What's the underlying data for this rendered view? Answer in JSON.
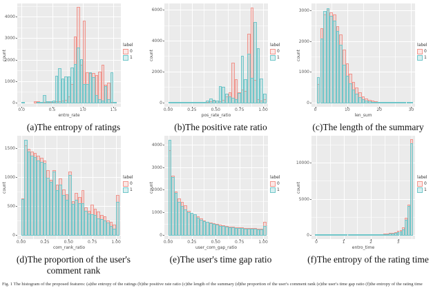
{
  "figure": {
    "caption": "Fig. 1 The histogram of the proposed features: (a)the entropy of the ratings (b)the positive rate ratio (c)the length of the summary (d)the proportion of the user's comment rank (e)the user's time gap ratio (f)the entropy of the rating time",
    "legend": {
      "title": "label",
      "entries": [
        "0",
        "1"
      ]
    },
    "colors": {
      "label0_stroke": "#f0948c",
      "label0_fill": "rgba(240,148,140,0.22)",
      "label1_stroke": "#6fc6c9",
      "label1_fill": "rgba(111,198,201,0.28)",
      "panel_bg": "#ebebeb",
      "grid": "#ffffff",
      "axis_text": "#4d4d4d"
    }
  },
  "chart_data": [
    {
      "id": "a",
      "type": "histogram",
      "caption": "(a)The entropy of ratings",
      "xlabel": "entro_rate",
      "ylabel": "count",
      "xlim": [
        -0.07,
        1.62
      ],
      "ylim": [
        0,
        4650
      ],
      "x_ticks": [
        0,
        0.5,
        1,
        1.5
      ],
      "x_tick_labels": [
        "0.0",
        "0.5",
        "1.0",
        "1.5"
      ],
      "y_ticks": [
        0,
        1000,
        2000,
        3000,
        4000
      ],
      "y_tick_labels": [
        "0",
        "1000",
        "2000",
        "3000",
        "4000"
      ],
      "bin_start": 0.0,
      "bin_width": 0.05,
      "series": [
        {
          "name": "0",
          "values": [
            70,
            0,
            0,
            0,
            100,
            90,
            30,
            30,
            40,
            60,
            70,
            80,
            100,
            130,
            150,
            300,
            900,
            3100,
            4500,
            1800,
            3850,
            1450,
            1400,
            1400,
            1320,
            1460,
            1780,
            860,
            950,
            40,
            60
          ]
        },
        {
          "name": "1",
          "values": [
            60,
            0,
            0,
            0,
            0,
            60,
            50,
            370,
            80,
            90,
            110,
            1280,
            1630,
            1140,
            1250,
            1230,
            1670,
            1820,
            2600,
            2050,
            900,
            880,
            1430,
            1200,
            380,
            180,
            120,
            780,
            180,
            1430,
            40
          ]
        }
      ]
    },
    {
      "id": "b",
      "type": "histogram",
      "caption": "(b)The positive rate ratio",
      "xlabel": "pos_rate_ratio",
      "ylabel": "count",
      "xlim": [
        -0.04,
        1.05
      ],
      "ylim": [
        0,
        6450
      ],
      "x_ticks": [
        0,
        0.25,
        0.5,
        0.75,
        1
      ],
      "x_tick_labels": [
        "0.00",
        "0.25",
        "0.50",
        "0.75",
        "1.00"
      ],
      "y_ticks": [
        0,
        2000,
        4000,
        6000
      ],
      "y_tick_labels": [
        "0",
        "2000",
        "4000",
        "6000"
      ],
      "bin_start": 0.0,
      "bin_width": 0.0333,
      "series": [
        {
          "name": "0",
          "values": [
            30,
            20,
            20,
            20,
            20,
            25,
            25,
            30,
            40,
            90,
            50,
            60,
            80,
            120,
            150,
            180,
            120,
            200,
            450,
            700,
            2600,
            1550,
            700,
            900,
            800,
            4500,
            6200,
            1500,
            250,
            150,
            250
          ]
        },
        {
          "name": "1",
          "values": [
            30,
            20,
            20,
            30,
            40,
            60,
            30,
            80,
            40,
            40,
            50,
            70,
            150,
            280,
            200,
            150,
            1100,
            1050,
            600,
            450,
            350,
            250,
            680,
            3050,
            1550,
            3200,
            1650,
            5250,
            3550,
            1600,
            600
          ]
        }
      ]
    },
    {
      "id": "c",
      "type": "histogram",
      "caption": "(c)The length of the summary",
      "xlabel": "len_sum",
      "ylabel": "count",
      "xlim": [
        -1.2,
        31.2
      ],
      "ylim": [
        0,
        3250
      ],
      "x_ticks": [
        0,
        10,
        20,
        30
      ],
      "x_tick_labels": [
        "0",
        "10",
        "20",
        "30"
      ],
      "y_ticks": [
        0,
        1000,
        2000,
        3000
      ],
      "y_tick_labels": [
        "0",
        "1000",
        "2000",
        "3000"
      ],
      "bin_start": 0.5,
      "bin_width": 1,
      "series": [
        {
          "name": "0",
          "values": [
            620,
            2450,
            2900,
            3050,
            2950,
            2900,
            2500,
            2250,
            1750,
            1300,
            950,
            700,
            500,
            350,
            230,
            150,
            110,
            80,
            60,
            50,
            40,
            35,
            30,
            25,
            22,
            20,
            18,
            15,
            12,
            10
          ]
        },
        {
          "name": "1",
          "values": [
            850,
            2100,
            3000,
            3100,
            2850,
            2700,
            2350,
            1900,
            1250,
            900,
            650,
            450,
            300,
            200,
            130,
            95,
            70,
            50,
            40,
            35,
            30,
            25,
            20,
            18,
            15,
            12,
            10,
            9,
            8,
            8
          ]
        }
      ]
    },
    {
      "id": "d",
      "type": "histogram",
      "caption": "(d)The proportion of the user's comment rank",
      "xlabel": "com_rank_ratio",
      "ylabel": "count",
      "xlim": [
        -0.04,
        1.05
      ],
      "ylim": [
        0,
        1720
      ],
      "x_ticks": [
        0,
        0.25,
        0.5,
        0.75,
        1
      ],
      "x_tick_labels": [
        "0.00",
        "0.25",
        "0.50",
        "0.75",
        "1.00"
      ],
      "y_ticks": [
        0,
        500,
        1000,
        1500
      ],
      "y_tick_labels": [
        "0",
        "500",
        "1000",
        "1500"
      ],
      "bin_start": 0.0,
      "bin_width": 0.0333,
      "series": [
        {
          "name": "0",
          "values": [
            640,
            1560,
            1500,
            1450,
            1420,
            1380,
            1340,
            1290,
            1130,
            960,
            1130,
            880,
            990,
            790,
            710,
            1100,
            590,
            740,
            660,
            780,
            490,
            430,
            540,
            460,
            410,
            360,
            330,
            260,
            240,
            190,
            700
          ]
        },
        {
          "name": "1",
          "values": [
            630,
            1650,
            1450,
            1380,
            1350,
            1300,
            1270,
            1250,
            1000,
            930,
            1110,
            780,
            880,
            700,
            620,
            1050,
            550,
            620,
            560,
            560,
            430,
            380,
            370,
            360,
            300,
            280,
            260,
            220,
            160,
            120,
            580
          ]
        }
      ]
    },
    {
      "id": "e",
      "type": "histogram",
      "caption": "(e)The user's time gap ratio",
      "xlabel": "user_com_gap_ratio",
      "ylabel": "count",
      "xlim": [
        -0.04,
        1.05
      ],
      "ylim": [
        0,
        4420
      ],
      "x_ticks": [
        0,
        0.25,
        0.5,
        0.75,
        1
      ],
      "x_tick_labels": [
        "0.00",
        "0.25",
        "0.50",
        "0.75",
        "1.00"
      ],
      "y_ticks": [
        0,
        1000,
        2000,
        3000,
        4000
      ],
      "y_tick_labels": [
        "0",
        "1000",
        "2000",
        "3000",
        "4000"
      ],
      "bin_start": 0.0,
      "bin_width": 0.0333,
      "series": [
        {
          "name": "0",
          "values": [
            3800,
            2650,
            1950,
            1650,
            1500,
            1350,
            1100,
            1000,
            950,
            850,
            750,
            680,
            620,
            580,
            550,
            520,
            480,
            450,
            430,
            410,
            390,
            370,
            360,
            350,
            340,
            330,
            330,
            320,
            310,
            300,
            620
          ]
        },
        {
          "name": "1",
          "values": [
            4250,
            2600,
            1900,
            1500,
            1300,
            1150,
            1050,
            1000,
            950,
            800,
            700,
            650,
            600,
            550,
            520,
            480,
            440,
            420,
            390,
            370,
            350,
            340,
            330,
            320,
            310,
            300,
            300,
            290,
            280,
            270,
            420
          ]
        }
      ]
    },
    {
      "id": "f",
      "type": "histogram",
      "caption": "(f)The entropy of the rating time",
      "xlabel": "entro_time",
      "ylabel": "count",
      "xlim": [
        -0.18,
        3.62
      ],
      "ylim": [
        0,
        13800
      ],
      "x_ticks": [
        0,
        1,
        2,
        3
      ],
      "x_tick_labels": [
        "0",
        "1",
        "2",
        "3"
      ],
      "y_ticks": [
        0,
        5000,
        10000
      ],
      "y_tick_labels": [
        "0",
        "5000",
        "10000"
      ],
      "bin_start": -0.05,
      "bin_width": 0.1,
      "series": [
        {
          "name": "0",
          "values": [
            150,
            30,
            60,
            70,
            80,
            80,
            90,
            90,
            100,
            100,
            110,
            110,
            120,
            120,
            130,
            140,
            150,
            160,
            170,
            180,
            200,
            180,
            190,
            170,
            200,
            250,
            300,
            350,
            420,
            500,
            620,
            750,
            1150,
            2450,
            4250,
            13300
          ]
        },
        {
          "name": "1",
          "values": [
            120,
            20,
            50,
            50,
            60,
            60,
            60,
            70,
            70,
            80,
            80,
            80,
            90,
            90,
            100,
            100,
            110,
            110,
            120,
            130,
            140,
            130,
            140,
            130,
            150,
            180,
            220,
            260,
            320,
            380,
            480,
            580,
            900,
            2200,
            4100,
            12800
          ]
        }
      ]
    }
  ]
}
